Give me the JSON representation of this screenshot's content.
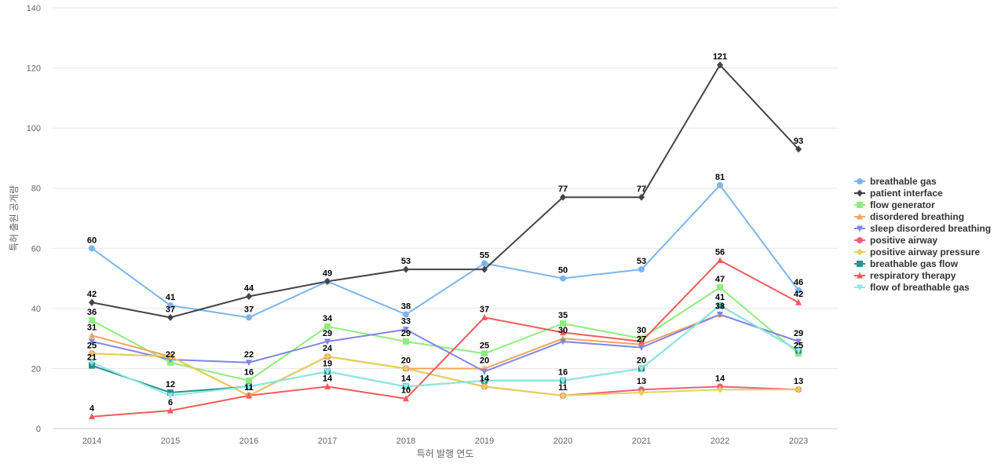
{
  "chart_data": {
    "type": "line",
    "title": "",
    "xlabel": "특허 발행 연도",
    "ylabel": "특허 출원 공개량",
    "ylim": [
      0,
      140
    ],
    "yticks": [
      0,
      20,
      40,
      60,
      80,
      100,
      120,
      140
    ],
    "grid": true,
    "legend_position": "right",
    "x": [
      "2014",
      "2015",
      "2016",
      "2017",
      "2018",
      "2019",
      "2020",
      "2021",
      "2022",
      "2023"
    ],
    "series": [
      {
        "name": "breathable gas",
        "color": "#7cb5ec",
        "marker": "circle",
        "values": [
          60,
          41,
          37,
          49,
          38,
          55,
          50,
          53,
          81,
          46
        ]
      },
      {
        "name": "patient interface",
        "color": "#434348",
        "marker": "diamond",
        "values": [
          42,
          37,
          44,
          49,
          53,
          53,
          77,
          77,
          121,
          93
        ]
      },
      {
        "name": "flow generator",
        "color": "#90ed7d",
        "marker": "square",
        "values": [
          36,
          22,
          16,
          34,
          29,
          25,
          35,
          30,
          47,
          25
        ]
      },
      {
        "name": "disordered breathing",
        "color": "#f7a35c",
        "marker": "triangle",
        "values": [
          31,
          24,
          11,
          24,
          20,
          20,
          30,
          28,
          38,
          29
        ]
      },
      {
        "name": "sleep disordered breathing",
        "color": "#8085e9",
        "marker": "triangle-down",
        "values": [
          29,
          23,
          22,
          29,
          33,
          19,
          29,
          27,
          38,
          29
        ]
      },
      {
        "name": "positive airway",
        "color": "#f15c80",
        "marker": "circle",
        "values": [
          25,
          24,
          11,
          24,
          20,
          14,
          11,
          13,
          14,
          13
        ]
      },
      {
        "name": "positive airway pressure",
        "color": "#e4d354",
        "marker": "diamond",
        "values": [
          25,
          24,
          11,
          24,
          20,
          14,
          11,
          12,
          13,
          13
        ]
      },
      {
        "name": "breathable gas flow",
        "color": "#2b908f",
        "marker": "square",
        "values": [
          21,
          12,
          14,
          19,
          14,
          16,
          16,
          20,
          41,
          26
        ]
      },
      {
        "name": "respiratory therapy",
        "color": "#f45b5b",
        "marker": "triangle",
        "values": [
          4,
          6,
          11,
          14,
          10,
          37,
          32,
          29,
          56,
          42
        ]
      },
      {
        "name": "flow of breathable gas",
        "color": "#91e8e1",
        "marker": "triangle-down",
        "values": [
          22,
          11,
          14,
          19,
          14,
          16,
          16,
          20,
          41,
          26
        ]
      }
    ],
    "data_labels": [
      {
        "x": "2014",
        "y": 60,
        "text": "60"
      },
      {
        "x": "2014",
        "y": 42,
        "text": "42"
      },
      {
        "x": "2014",
        "y": 36,
        "text": "36"
      },
      {
        "x": "2014",
        "y": 31,
        "text": "31"
      },
      {
        "x": "2014",
        "y": 25,
        "text": "25"
      },
      {
        "x": "2014",
        "y": 21,
        "text": "21"
      },
      {
        "x": "2014",
        "y": 4,
        "text": "4"
      },
      {
        "x": "2015",
        "y": 41,
        "text": "41"
      },
      {
        "x": "2015",
        "y": 37,
        "text": "37"
      },
      {
        "x": "2015",
        "y": 22,
        "text": "22"
      },
      {
        "x": "2015",
        "y": 12,
        "text": "12"
      },
      {
        "x": "2015",
        "y": 6,
        "text": "6"
      },
      {
        "x": "2016",
        "y": 44,
        "text": "44"
      },
      {
        "x": "2016",
        "y": 37,
        "text": "37"
      },
      {
        "x": "2016",
        "y": 22,
        "text": "22"
      },
      {
        "x": "2016",
        "y": 16,
        "text": "16"
      },
      {
        "x": "2016",
        "y": 11,
        "text": "11"
      },
      {
        "x": "2017",
        "y": 49,
        "text": "49"
      },
      {
        "x": "2017",
        "y": 34,
        "text": "34"
      },
      {
        "x": "2017",
        "y": 29,
        "text": "29"
      },
      {
        "x": "2017",
        "y": 24,
        "text": "24"
      },
      {
        "x": "2017",
        "y": 19,
        "text": "19"
      },
      {
        "x": "2017",
        "y": 14,
        "text": "14"
      },
      {
        "x": "2018",
        "y": 53,
        "text": "53"
      },
      {
        "x": "2018",
        "y": 38,
        "text": "38"
      },
      {
        "x": "2018",
        "y": 33,
        "text": "33"
      },
      {
        "x": "2018",
        "y": 29,
        "text": "29"
      },
      {
        "x": "2018",
        "y": 20,
        "text": "20"
      },
      {
        "x": "2018",
        "y": 14,
        "text": "14"
      },
      {
        "x": "2018",
        "y": 10,
        "text": "10"
      },
      {
        "x": "2019",
        "y": 55,
        "text": "55"
      },
      {
        "x": "2019",
        "y": 37,
        "text": "37"
      },
      {
        "x": "2019",
        "y": 25,
        "text": "25"
      },
      {
        "x": "2019",
        "y": 20,
        "text": "20"
      },
      {
        "x": "2019",
        "y": 14,
        "text": "14"
      },
      {
        "x": "2020",
        "y": 77,
        "text": "77"
      },
      {
        "x": "2020",
        "y": 50,
        "text": "50"
      },
      {
        "x": "2020",
        "y": 35,
        "text": "35"
      },
      {
        "x": "2020",
        "y": 30,
        "text": "30"
      },
      {
        "x": "2020",
        "y": 16,
        "text": "16"
      },
      {
        "x": "2020",
        "y": 11,
        "text": "11"
      },
      {
        "x": "2021",
        "y": 77,
        "text": "77"
      },
      {
        "x": "2021",
        "y": 53,
        "text": "53"
      },
      {
        "x": "2021",
        "y": 30,
        "text": "30"
      },
      {
        "x": "2021",
        "y": 27,
        "text": "27"
      },
      {
        "x": "2021",
        "y": 20,
        "text": "20"
      },
      {
        "x": "2021",
        "y": 13,
        "text": "13"
      },
      {
        "x": "2022",
        "y": 121,
        "text": "121"
      },
      {
        "x": "2022",
        "y": 81,
        "text": "81"
      },
      {
        "x": "2022",
        "y": 56,
        "text": "56"
      },
      {
        "x": "2022",
        "y": 47,
        "text": "47"
      },
      {
        "x": "2022",
        "y": 41,
        "text": "41"
      },
      {
        "x": "2022",
        "y": 38,
        "text": "38"
      },
      {
        "x": "2022",
        "y": 14,
        "text": "14"
      },
      {
        "x": "2023",
        "y": 93,
        "text": "93"
      },
      {
        "x": "2023",
        "y": 46,
        "text": "46"
      },
      {
        "x": "2023",
        "y": 42,
        "text": "42"
      },
      {
        "x": "2023",
        "y": 29,
        "text": "29"
      },
      {
        "x": "2023",
        "y": 25,
        "text": "25"
      },
      {
        "x": "2023",
        "y": 13,
        "text": "13"
      }
    ]
  }
}
